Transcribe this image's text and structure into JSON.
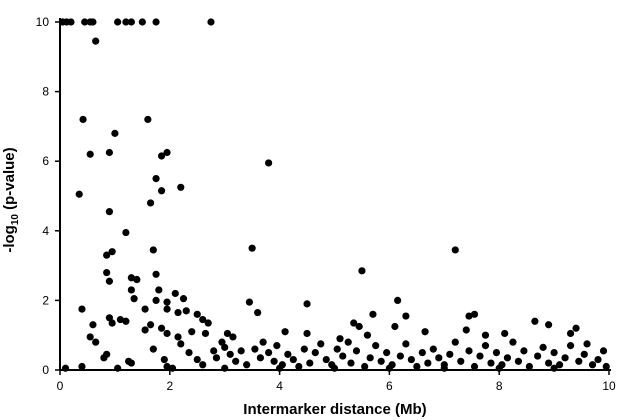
{
  "chart_data": {
    "type": "scatter",
    "xlabel": "Intermarker distance (Mb)",
    "ylabel_main": "-log",
    "ylabel_sub": "10",
    "ylabel_tail": " (p-value)",
    "xlim": [
      0,
      10
    ],
    "ylim": [
      0,
      10
    ],
    "x_ticks": [
      0,
      2,
      4,
      6,
      8,
      10
    ],
    "y_ticks": [
      0,
      2,
      4,
      6,
      8,
      10
    ],
    "grid": false,
    "marker_color": "#000000",
    "series": [
      {
        "points": [
          [
            0.05,
            10
          ],
          [
            0.12,
            10
          ],
          [
            0.2,
            10
          ],
          [
            0.45,
            10
          ],
          [
            0.55,
            10
          ],
          [
            0.6,
            10
          ],
          [
            1.05,
            10
          ],
          [
            1.2,
            10
          ],
          [
            1.3,
            10
          ],
          [
            1.5,
            10
          ],
          [
            1.75,
            10
          ],
          [
            2.75,
            10
          ],
          [
            0.65,
            9.45
          ],
          [
            0.42,
            7.2
          ],
          [
            1.6,
            7.2
          ],
          [
            1.0,
            6.8
          ],
          [
            0.55,
            6.2
          ],
          [
            0.9,
            6.25
          ],
          [
            1.85,
            6.15
          ],
          [
            1.95,
            6.25
          ],
          [
            3.8,
            5.95
          ],
          [
            1.75,
            5.5
          ],
          [
            2.2,
            5.25
          ],
          [
            0.35,
            5.05
          ],
          [
            1.85,
            5.15
          ],
          [
            1.65,
            4.8
          ],
          [
            0.9,
            4.55
          ],
          [
            1.2,
            3.95
          ],
          [
            0.95,
            3.4
          ],
          [
            0.85,
            3.3
          ],
          [
            1.7,
            3.45
          ],
          [
            3.5,
            3.5
          ],
          [
            7.2,
            3.45
          ],
          [
            0.85,
            2.8
          ],
          [
            0.9,
            2.55
          ],
          [
            1.3,
            2.65
          ],
          [
            1.4,
            2.6
          ],
          [
            1.75,
            2.75
          ],
          [
            1.8,
            2.3
          ],
          [
            2.1,
            2.2
          ],
          [
            1.3,
            2.3
          ],
          [
            1.35,
            2.05
          ],
          [
            5.5,
            2.85
          ],
          [
            1.75,
            2.0
          ],
          [
            1.95,
            1.95
          ],
          [
            2.25,
            2.05
          ],
          [
            3.45,
            1.95
          ],
          [
            6.15,
            2.0
          ],
          [
            4.5,
            1.9
          ],
          [
            0.4,
            1.75
          ],
          [
            1.55,
            1.75
          ],
          [
            1.95,
            1.75
          ],
          [
            2.15,
            1.65
          ],
          [
            2.3,
            1.7
          ],
          [
            2.5,
            1.6
          ],
          [
            3.6,
            1.65
          ],
          [
            5.7,
            1.6
          ],
          [
            7.45,
            1.55
          ],
          [
            7.55,
            1.6
          ],
          [
            6.3,
            1.55
          ],
          [
            0.9,
            1.5
          ],
          [
            1.1,
            1.45
          ],
          [
            1.2,
            1.4
          ],
          [
            0.95,
            1.35
          ],
          [
            0.6,
            1.3
          ],
          [
            1.65,
            1.3
          ],
          [
            2.6,
            1.45
          ],
          [
            2.7,
            1.35
          ],
          [
            5.35,
            1.35
          ],
          [
            5.45,
            1.25
          ],
          [
            8.65,
            1.4
          ],
          [
            8.9,
            1.3
          ],
          [
            9.4,
            1.2
          ],
          [
            6.1,
            1.25
          ],
          [
            7.4,
            1.15
          ],
          [
            0.55,
            0.95
          ],
          [
            0.65,
            0.8
          ],
          [
            1.55,
            1.15
          ],
          [
            1.85,
            1.2
          ],
          [
            1.95,
            1.05
          ],
          [
            2.4,
            1.1
          ],
          [
            2.65,
            1.05
          ],
          [
            3.05,
            1.05
          ],
          [
            3.15,
            0.95
          ],
          [
            4.1,
            1.1
          ],
          [
            4.5,
            1.05
          ],
          [
            5.1,
            0.9
          ],
          [
            5.6,
            1.0
          ],
          [
            6.65,
            1.1
          ],
          [
            7.75,
            1.0
          ],
          [
            8.1,
            1.05
          ],
          [
            9.3,
            1.05
          ],
          [
            9.6,
            0.75
          ],
          [
            9.9,
            0.55
          ],
          [
            0.8,
            0.35
          ],
          [
            0.85,
            0.45
          ],
          [
            1.25,
            0.25
          ],
          [
            1.3,
            0.2
          ],
          [
            1.7,
            0.6
          ],
          [
            1.9,
            0.3
          ],
          [
            1.95,
            0.1
          ],
          [
            2.15,
            0.95
          ],
          [
            2.2,
            0.75
          ],
          [
            2.35,
            0.5
          ],
          [
            2.5,
            0.3
          ],
          [
            2.6,
            0.15
          ],
          [
            2.8,
            0.55
          ],
          [
            2.85,
            0.35
          ],
          [
            2.95,
            0.8
          ],
          [
            3.0,
            0.65
          ],
          [
            3.1,
            0.45
          ],
          [
            3.2,
            0.25
          ],
          [
            3.3,
            0.55
          ],
          [
            3.4,
            0.15
          ],
          [
            3.55,
            0.6
          ],
          [
            3.65,
            0.35
          ],
          [
            3.7,
            0.8
          ],
          [
            3.8,
            0.5
          ],
          [
            3.9,
            0.25
          ],
          [
            3.95,
            0.7
          ],
          [
            4.05,
            0.15
          ],
          [
            4.15,
            0.45
          ],
          [
            4.25,
            0.3
          ],
          [
            4.35,
            0.1
          ],
          [
            4.45,
            0.6
          ],
          [
            4.55,
            0.2
          ],
          [
            4.65,
            0.5
          ],
          [
            4.75,
            0.75
          ],
          [
            4.85,
            0.3
          ],
          [
            4.95,
            0.15
          ],
          [
            5.05,
            0.6
          ],
          [
            5.15,
            0.4
          ],
          [
            5.25,
            0.8
          ],
          [
            5.3,
            0.2
          ],
          [
            5.4,
            0.55
          ],
          [
            5.55,
            0.1
          ],
          [
            5.65,
            0.35
          ],
          [
            5.75,
            0.7
          ],
          [
            5.85,
            0.25
          ],
          [
            5.95,
            0.5
          ],
          [
            6.05,
            0.15
          ],
          [
            6.2,
            0.4
          ],
          [
            6.3,
            0.75
          ],
          [
            6.4,
            0.3
          ],
          [
            6.5,
            0.1
          ],
          [
            6.6,
            0.5
          ],
          [
            6.7,
            0.2
          ],
          [
            6.8,
            0.6
          ],
          [
            6.9,
            0.35
          ],
          [
            7.0,
            0.15
          ],
          [
            7.1,
            0.45
          ],
          [
            7.2,
            0.8
          ],
          [
            7.3,
            0.25
          ],
          [
            7.45,
            0.55
          ],
          [
            7.55,
            0.1
          ],
          [
            7.65,
            0.4
          ],
          [
            7.75,
            0.7
          ],
          [
            7.85,
            0.2
          ],
          [
            7.95,
            0.5
          ],
          [
            8.05,
            0.15
          ],
          [
            8.15,
            0.35
          ],
          [
            8.25,
            0.8
          ],
          [
            8.35,
            0.25
          ],
          [
            8.45,
            0.55
          ],
          [
            8.55,
            0.1
          ],
          [
            8.7,
            0.4
          ],
          [
            8.8,
            0.65
          ],
          [
            8.9,
            0.2
          ],
          [
            9.0,
            0.5
          ],
          [
            9.1,
            0.15
          ],
          [
            9.2,
            0.35
          ],
          [
            9.3,
            0.7
          ],
          [
            9.45,
            0.25
          ],
          [
            9.55,
            0.45
          ],
          [
            9.7,
            0.15
          ],
          [
            9.8,
            0.3
          ],
          [
            9.95,
            0.1
          ],
          [
            0.1,
            0.05
          ],
          [
            0.4,
            0.1
          ],
          [
            1.05,
            0.05
          ],
          [
            2.05,
            0.05
          ],
          [
            3.0,
            0.05
          ],
          [
            4.0,
            0.05
          ],
          [
            5.0,
            0.05
          ],
          [
            6.0,
            0.05
          ],
          [
            7.0,
            0.05
          ],
          [
            8.0,
            0.05
          ],
          [
            9.0,
            0.05
          ]
        ]
      }
    ]
  }
}
